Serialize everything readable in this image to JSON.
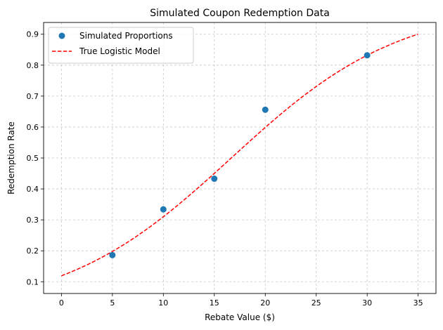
{
  "chart_data": {
    "type": "scatter",
    "title": "Simulated Coupon Redemption Data",
    "xlabel": "Rebate Value ($)",
    "ylabel": "Redemption Rate",
    "xlim": [
      -1.75,
      36.75
    ],
    "ylim": [
      0.062,
      0.938
    ],
    "xticks": [
      0,
      5,
      10,
      15,
      20,
      25,
      30,
      35
    ],
    "yticks": [
      0.1,
      0.2,
      0.3,
      0.4,
      0.5,
      0.6,
      0.7,
      0.8,
      0.9
    ],
    "grid": true,
    "legend_position": "top-left",
    "series": [
      {
        "name": "Simulated Proportions",
        "kind": "scatter",
        "color": "#1f77b4",
        "x": [
          5,
          10,
          15,
          20,
          30
        ],
        "y": [
          0.186,
          0.334,
          0.433,
          0.656,
          0.832
        ]
      },
      {
        "name": "True Logistic Model",
        "kind": "line",
        "style": "dashed",
        "color": "#ff0000",
        "model": {
          "intercept": -2.0,
          "slope": 0.12
        },
        "x_range": [
          0,
          35
        ]
      }
    ]
  }
}
